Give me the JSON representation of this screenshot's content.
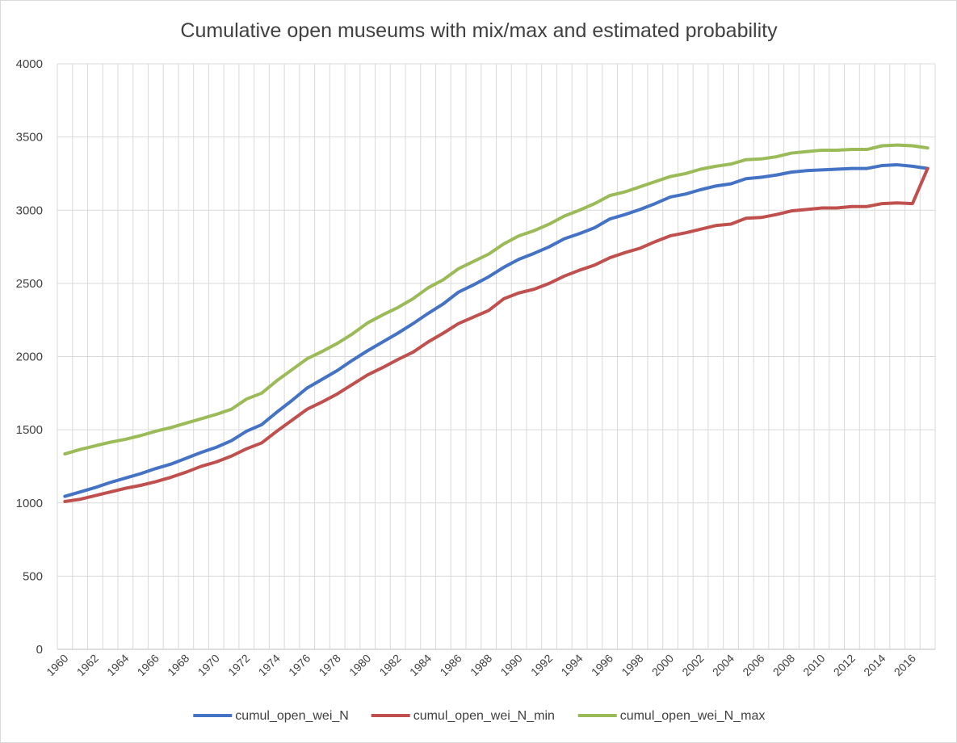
{
  "chart_data": {
    "type": "line",
    "title": "Cumulative open museums with mix/max and estimated probability",
    "xlabel": "",
    "ylabel": "",
    "ylim": [
      0,
      4000
    ],
    "yticks": [
      "0",
      "500",
      "1000",
      "1500",
      "2000",
      "2500",
      "3000",
      "3500",
      "4000"
    ],
    "x": [
      1960,
      1961,
      1962,
      1963,
      1964,
      1965,
      1966,
      1967,
      1968,
      1969,
      1970,
      1971,
      1972,
      1973,
      1974,
      1975,
      1976,
      1977,
      1978,
      1979,
      1980,
      1981,
      1982,
      1983,
      1984,
      1985,
      1986,
      1987,
      1988,
      1989,
      1990,
      1991,
      1992,
      1993,
      1994,
      1995,
      1996,
      1997,
      1998,
      1999,
      2000,
      2001,
      2002,
      2003,
      2004,
      2005,
      2006,
      2007,
      2008,
      2009,
      2010,
      2011,
      2012,
      2013,
      2014,
      2015,
      2016,
      2017
    ],
    "xtick_labels": [
      "1960",
      "1962",
      "1964",
      "1966",
      "1968",
      "1970",
      "1972",
      "1974",
      "1976",
      "1978",
      "1980",
      "1982",
      "1984",
      "1986",
      "1988",
      "1990",
      "1992",
      "1994",
      "1996",
      "1998",
      "2000",
      "2002",
      "2004",
      "2006",
      "2008",
      "2010",
      "2012",
      "2014",
      "2016"
    ],
    "grid": true,
    "legend_position": "bottom",
    "series": [
      {
        "name": "cumul_open_wei_N",
        "color": "#4472c4",
        "values": [
          1045,
          1075,
          1105,
          1140,
          1170,
          1200,
          1235,
          1265,
          1305,
          1345,
          1380,
          1425,
          1490,
          1535,
          1620,
          1700,
          1785,
          1845,
          1905,
          1975,
          2040,
          2100,
          2160,
          2225,
          2295,
          2360,
          2440,
          2490,
          2545,
          2610,
          2665,
          2705,
          2750,
          2805,
          2840,
          2880,
          2940,
          2970,
          3005,
          3045,
          3090,
          3110,
          3140,
          3165,
          3180,
          3215,
          3225,
          3240,
          3260,
          3270,
          3275,
          3280,
          3285,
          3285,
          3305,
          3310,
          3300,
          3285
        ]
      },
      {
        "name": "cumul_open_wei_N_min",
        "color": "#c0504d",
        "values": [
          1010,
          1025,
          1050,
          1075,
          1100,
          1120,
          1145,
          1175,
          1210,
          1250,
          1280,
          1320,
          1370,
          1410,
          1490,
          1565,
          1640,
          1690,
          1745,
          1810,
          1875,
          1925,
          1980,
          2030,
          2100,
          2160,
          2225,
          2270,
          2315,
          2395,
          2435,
          2460,
          2500,
          2550,
          2590,
          2625,
          2675,
          2710,
          2740,
          2785,
          2825,
          2845,
          2870,
          2895,
          2905,
          2945,
          2950,
          2970,
          2995,
          3005,
          3015,
          3015,
          3025,
          3025,
          3045,
          3050,
          3045,
          3285
        ]
      },
      {
        "name": "cumul_open_wei_N_max",
        "color": "#9bbb59",
        "values": [
          1335,
          1365,
          1390,
          1415,
          1435,
          1460,
          1490,
          1515,
          1545,
          1575,
          1605,
          1640,
          1710,
          1750,
          1835,
          1910,
          1985,
          2035,
          2090,
          2155,
          2230,
          2285,
          2335,
          2395,
          2470,
          2525,
          2600,
          2650,
          2700,
          2770,
          2825,
          2860,
          2905,
          2960,
          3000,
          3045,
          3100,
          3125,
          3160,
          3195,
          3230,
          3250,
          3280,
          3300,
          3315,
          3345,
          3350,
          3365,
          3390,
          3400,
          3410,
          3410,
          3415,
          3415,
          3440,
          3445,
          3440,
          3425
        ]
      }
    ]
  }
}
